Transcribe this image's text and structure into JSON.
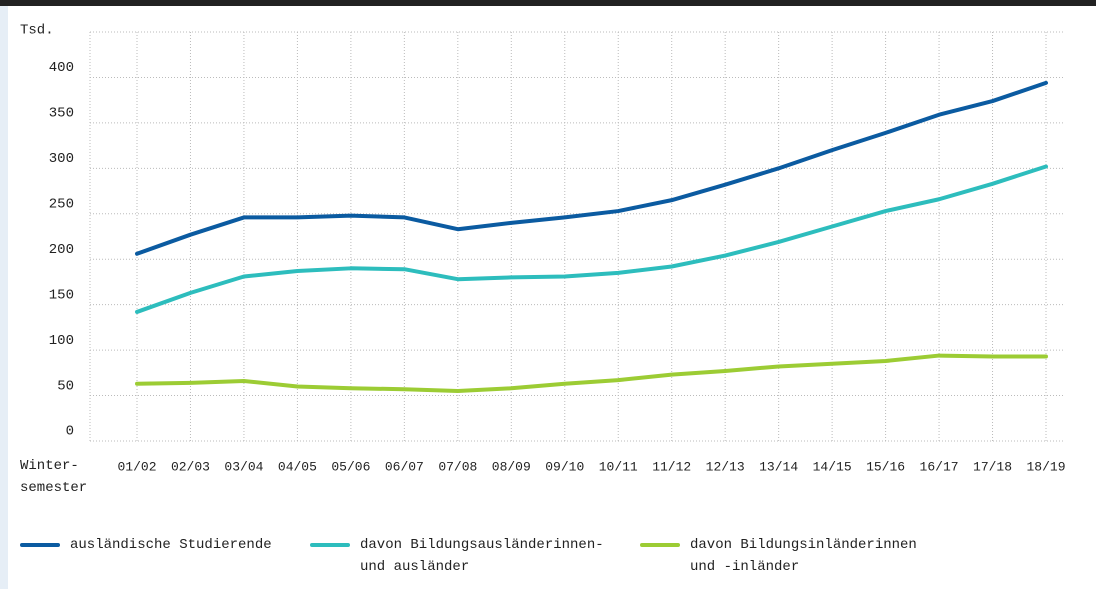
{
  "chart_data": {
    "type": "line",
    "y_label": "Tsd.",
    "x_label": "Winter-\nsemester",
    "categories": [
      "01/02",
      "02/03",
      "03/04",
      "04/05",
      "05/06",
      "06/07",
      "07/08",
      "08/09",
      "09/10",
      "10/11",
      "11/12",
      "12/13",
      "13/14",
      "14/15",
      "15/16",
      "16/17",
      "17/18",
      "18/19"
    ],
    "series": [
      {
        "name": "ausländische Studierende",
        "color": "#0b5ba1",
        "values": [
          206,
          227,
          246,
          246,
          248,
          246,
          233,
          240,
          246,
          253,
          265,
          282,
          300,
          320,
          339,
          359,
          374,
          394
        ]
      },
      {
        "name": "davon Bildungsausländerinnen-\nund ausländer",
        "color": "#2dbdbd",
        "values": [
          142,
          163,
          181,
          187,
          190,
          189,
          178,
          180,
          181,
          185,
          192,
          204,
          219,
          236,
          253,
          266,
          283,
          302
        ]
      },
      {
        "name": "davon Bildungsinländerinnen\nund -inländer",
        "color": "#9ccc34",
        "values": [
          63,
          64,
          66,
          60,
          58,
          57,
          55,
          58,
          63,
          67,
          73,
          77,
          82,
          85,
          88,
          94,
          93,
          93
        ]
      }
    ],
    "ylim": [
      0,
      450
    ],
    "yticks": [
      0,
      50,
      100,
      150,
      200,
      250,
      300,
      350,
      400
    ],
    "grid": true
  }
}
